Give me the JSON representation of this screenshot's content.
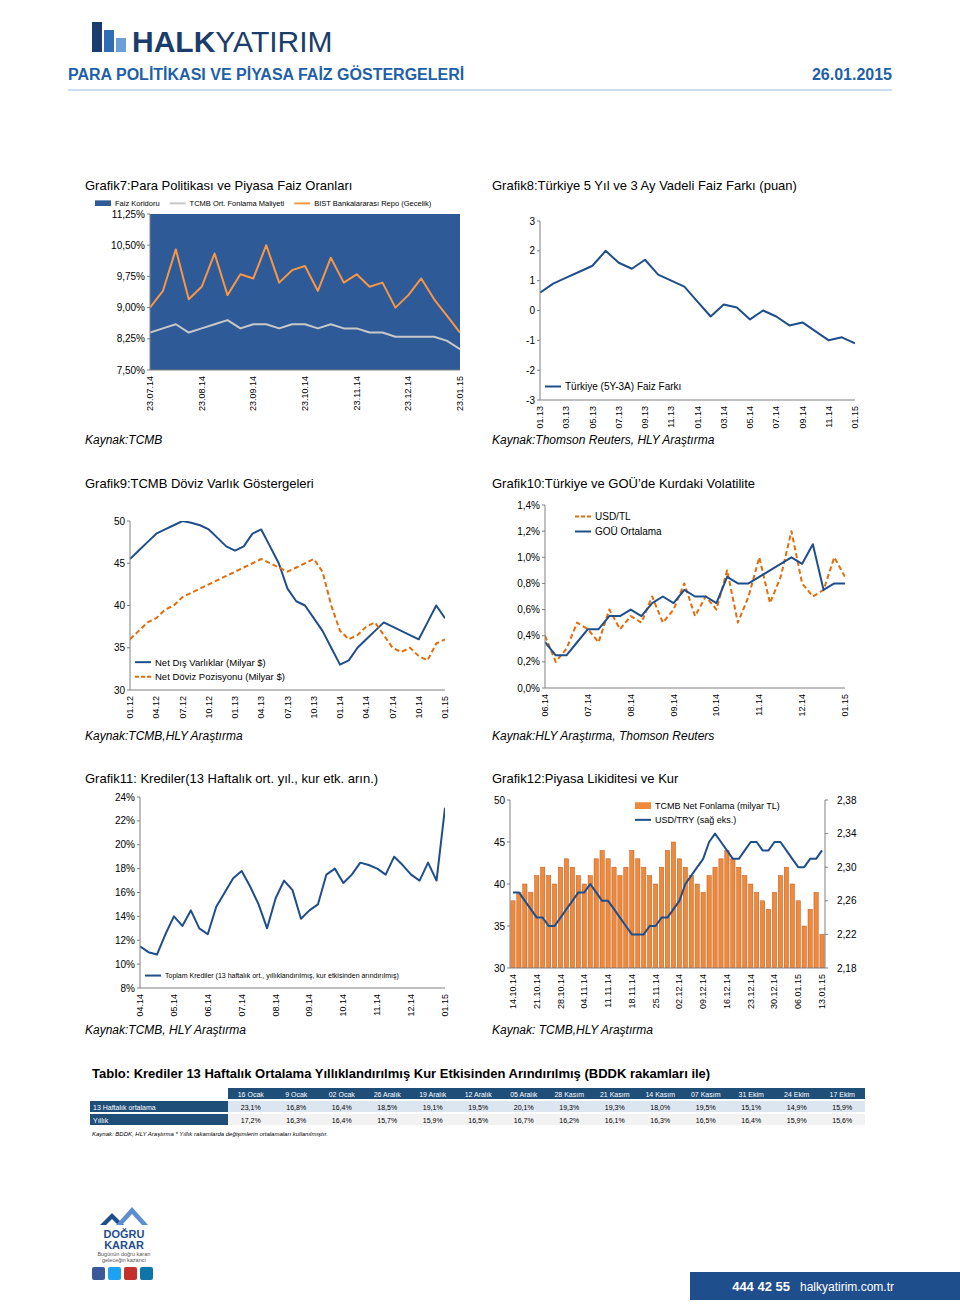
{
  "header": {
    "logo_bold": "HALK",
    "logo_light": "YATIRIM",
    "title": "PARA POLİTİKASI VE PİYASA FAİZ GÖSTERGELERİ",
    "date": "26.01.2015"
  },
  "chart_data": [
    {
      "type": "line",
      "title": "Grafik7:Para Politikası ve Piyasa Faiz Oranları",
      "source": "Kaynak:TCMB",
      "legend": "top",
      "grid": false,
      "categories": [
        "23.07.14",
        null,
        null,
        null,
        "23.08.14",
        null,
        null,
        null,
        "23.09.14",
        null,
        null,
        null,
        "23.10.14",
        null,
        null,
        null,
        "23.11.14",
        null,
        null,
        null,
        "23.12.14",
        null,
        null,
        null,
        "23.01.15"
      ],
      "series": [
        {
          "name": "Faiz Koridoru",
          "type": "area",
          "color": "#2e5a97",
          "values": [
            11.25,
            11.25,
            11.25,
            11.25,
            11.25,
            11.25,
            11.25,
            11.25,
            11.25,
            11.25,
            11.25,
            11.25,
            11.25,
            11.25,
            11.25,
            11.25,
            11.25,
            11.25,
            11.25,
            11.25,
            11.25,
            11.25,
            11.25,
            11.25,
            11.25
          ]
        },
        {
          "name": "TCMB Ort. Fonlama Maliyeti",
          "type": "line",
          "color": "#c8c8c8",
          "values": [
            8.4,
            8.5,
            8.6,
            8.4,
            8.5,
            8.6,
            8.7,
            8.5,
            8.6,
            8.6,
            8.5,
            8.6,
            8.6,
            8.5,
            8.6,
            8.5,
            8.5,
            8.4,
            8.4,
            8.3,
            8.3,
            8.3,
            8.3,
            8.2,
            8.0
          ]
        },
        {
          "name": "BIST Bankalararası Repo (Gecelik)",
          "type": "line",
          "color": "#f79646",
          "values": [
            9.0,
            9.4,
            10.4,
            9.2,
            9.5,
            10.3,
            9.3,
            9.8,
            9.7,
            10.5,
            9.6,
            9.9,
            10.0,
            9.4,
            10.2,
            9.6,
            9.8,
            9.5,
            9.6,
            9.0,
            9.3,
            9.7,
            9.2,
            8.8,
            8.4
          ]
        }
      ],
      "ylim": [
        7.5,
        11.25
      ],
      "yticks": [
        {
          "value": 7.5,
          "label": "7,50%"
        },
        {
          "value": 8.25,
          "label": "8,25%"
        },
        {
          "value": 9,
          "label": "9,00%"
        },
        {
          "value": 9.75,
          "label": "9,75%"
        },
        {
          "value": 10.5,
          "label": "10,50%"
        },
        {
          "value": 11.25,
          "label": "11,25%"
        }
      ]
    },
    {
      "type": "line",
      "title": "Grafik8:Türkiye 5 Yıl ve 3 Ay Vadeli Faiz Farkı (puan)",
      "source": "Kaynak:Thomson Reuters, HLY Araştırma",
      "legend": "bottom-left",
      "grid": false,
      "categories": [
        "01.13",
        null,
        "03.13",
        null,
        "05.13",
        null,
        "07.13",
        null,
        "09.13",
        null,
        "11.13",
        null,
        "01.14",
        null,
        "03.14",
        null,
        "05.14",
        null,
        "07.14",
        null,
        "09.14",
        null,
        "11.14",
        null,
        "01.15"
      ],
      "series": [
        {
          "name": "Türkiye (5Y-3A) Faiz Farkı",
          "color": "#1f4e8c",
          "values": [
            0.6,
            0.9,
            1.1,
            1.3,
            1.5,
            2.0,
            1.6,
            1.4,
            1.7,
            1.2,
            1.0,
            0.8,
            0.3,
            -0.2,
            0.2,
            0.1,
            -0.3,
            0.0,
            -0.2,
            -0.5,
            -0.4,
            -0.7,
            -1.0,
            -0.9,
            -1.1
          ]
        }
      ],
      "ylim": [
        -3,
        3
      ],
      "yticks": [
        -3,
        -2,
        -1,
        0,
        1,
        2,
        3
      ]
    },
    {
      "type": "line",
      "title": "Grafik9:TCMB Döviz Varlık Göstergeleri",
      "source": "Kaynak:TCMB,HLY Araştırma",
      "legend": "bottom-left",
      "grid": false,
      "categories": [
        "01.12",
        null,
        null,
        "04.12",
        null,
        null,
        "07.12",
        null,
        null,
        "10.12",
        null,
        null,
        "01.13",
        null,
        null,
        "04.13",
        null,
        null,
        "07.13",
        null,
        null,
        "10.13",
        null,
        null,
        "01.14",
        null,
        null,
        "04.14",
        null,
        null,
        "07.14",
        null,
        null,
        "10.14",
        null,
        null,
        "01.15"
      ],
      "series": [
        {
          "name": "Net Dış Varlıklar (Milyar $)",
          "color": "#1f4e8c",
          "line_style": "solid",
          "values": [
            45.5,
            46.5,
            47.5,
            48.5,
            49,
            49.5,
            50,
            49.8,
            49.5,
            49,
            48,
            47,
            46.5,
            47,
            48.5,
            49,
            47,
            45,
            42,
            40.5,
            40,
            38.5,
            37,
            35,
            33,
            33.5,
            35,
            36,
            37,
            38,
            37.5,
            37,
            36.5,
            36,
            38,
            40,
            38.5
          ]
        },
        {
          "name": "Net Döviz Pozisyonu (Milyar $)",
          "color": "#e46c0a",
          "line_style": "dashed",
          "values": [
            36,
            37,
            38,
            38.5,
            39.5,
            40,
            41,
            41.5,
            42,
            42.5,
            43,
            43.5,
            44,
            44.5,
            45,
            45.5,
            45,
            44.5,
            44,
            44.5,
            45,
            45.5,
            44,
            40,
            37,
            36,
            36.5,
            37.5,
            38,
            36.5,
            35,
            34.5,
            35,
            34,
            33.5,
            35.5,
            36
          ]
        }
      ],
      "ylim": [
        30,
        50
      ],
      "yticks": [
        30,
        35,
        40,
        45,
        50
      ]
    },
    {
      "type": "line",
      "title": "Grafik10:Türkiye ve GOÜ’de Kurdaki Volatilite",
      "source": "Kaynak:HLY Araştırma, Thomson Reuters",
      "legend": "top-left",
      "grid": false,
      "categories": [
        "06.14",
        null,
        null,
        null,
        "07.14",
        null,
        null,
        null,
        "08.14",
        null,
        null,
        null,
        "09.14",
        null,
        null,
        null,
        "10.14",
        null,
        null,
        null,
        "11.14",
        null,
        null,
        null,
        "12.14",
        null,
        null,
        null,
        "01.15"
      ],
      "series": [
        {
          "name": "USD/TL",
          "color": "#e46c0a",
          "line_style": "dashed",
          "values": [
            0.4,
            0.2,
            0.3,
            0.5,
            0.45,
            0.35,
            0.6,
            0.45,
            0.55,
            0.5,
            0.7,
            0.5,
            0.6,
            0.8,
            0.55,
            0.7,
            0.6,
            0.9,
            0.5,
            0.7,
            1.0,
            0.65,
            0.85,
            1.2,
            0.8,
            0.7,
            0.75,
            1.0,
            0.85
          ]
        },
        {
          "name": "GOÜ Ortalama",
          "color": "#1f4e8c",
          "line_style": "solid",
          "values": [
            0.35,
            0.25,
            0.25,
            0.35,
            0.45,
            0.45,
            0.55,
            0.55,
            0.6,
            0.55,
            0.65,
            0.7,
            0.65,
            0.75,
            0.7,
            0.7,
            0.65,
            0.85,
            0.8,
            0.8,
            0.85,
            0.9,
            0.95,
            1.0,
            0.95,
            1.1,
            0.75,
            0.8,
            0.8
          ]
        }
      ],
      "ylim": [
        0,
        1.4
      ],
      "yticks": [
        {
          "value": 0,
          "label": "0,0%"
        },
        {
          "value": 0.2,
          "label": "0,2%"
        },
        {
          "value": 0.4,
          "label": "0,4%"
        },
        {
          "value": 0.6,
          "label": "0,6%"
        },
        {
          "value": 0.8,
          "label": "0,8%"
        },
        {
          "value": 1.0,
          "label": "1,0%"
        },
        {
          "value": 1.2,
          "label": "1,2%"
        },
        {
          "value": 1.4,
          "label": "1,4%"
        }
      ]
    },
    {
      "type": "line",
      "title": "Grafik11: Krediler(13 Haftalık ort. yıl., kur etk. arın.)",
      "source": "Kaynak:TCMB, HLY Araştırma",
      "legend": "bottom-left",
      "grid": false,
      "categories": [
        "04.14",
        null,
        null,
        null,
        "05.14",
        null,
        null,
        null,
        "06.14",
        null,
        null,
        null,
        "07.14",
        null,
        null,
        null,
        "08.14",
        null,
        null,
        null,
        "09.14",
        null,
        null,
        null,
        "10.14",
        null,
        null,
        null,
        "11.14",
        null,
        null,
        null,
        "12.14",
        null,
        null,
        null,
        "01.15"
      ],
      "series": [
        {
          "name": "Toplam Krediler (13 haftalık ort., yıllıklandırılmış, kur etkisinden arındırılmış)",
          "color": "#1f4e8c",
          "values": [
            11.5,
            11.0,
            10.8,
            12.5,
            14.0,
            13.2,
            14.5,
            13.0,
            12.5,
            14.8,
            16.0,
            17.2,
            17.8,
            16.5,
            15.0,
            13.0,
            15.5,
            17.0,
            16.2,
            13.8,
            14.5,
            15.0,
            17.5,
            18.0,
            16.8,
            17.5,
            18.5,
            18.3,
            18.0,
            17.5,
            19.0,
            18.3,
            17.5,
            17.0,
            18.5,
            17.0,
            23.1
          ]
        }
      ],
      "ylim": [
        8,
        24
      ],
      "yticks": [
        {
          "value": 8,
          "label": "8%"
        },
        {
          "value": 10,
          "label": "10%"
        },
        {
          "value": 12,
          "label": "12%"
        },
        {
          "value": 14,
          "label": "14%"
        },
        {
          "value": 16,
          "label": "16%"
        },
        {
          "value": 18,
          "label": "18%"
        },
        {
          "value": 20,
          "label": "20%"
        },
        {
          "value": 22,
          "label": "22%"
        },
        {
          "value": 24,
          "label": "24%"
        }
      ]
    },
    {
      "type": "bar",
      "title": "Grafik12:Piyasa Likiditesi ve Kur",
      "source": "Kaynak: TCMB,HLY Araştırma",
      "legend": "top-right",
      "grid": false,
      "categories": [
        "14.10.14",
        null,
        null,
        null,
        "21.10.14",
        null,
        null,
        null,
        "28.10.14",
        null,
        null,
        null,
        "04.11.14",
        null,
        null,
        null,
        "11.11.14",
        null,
        null,
        null,
        "18.11.14",
        null,
        null,
        null,
        "25.11.14",
        null,
        null,
        null,
        "02.12.14",
        null,
        null,
        null,
        "09.12.14",
        null,
        null,
        null,
        "16.12.14",
        null,
        null,
        null,
        "23.12.14",
        null,
        null,
        null,
        "30.12.14",
        null,
        null,
        null,
        "06.01.15",
        null,
        null,
        null,
        "13.01.15"
      ],
      "series": [
        {
          "name": "TCMB Net Fonlama (milyar TL)",
          "type": "bar",
          "color": "#ee8a3c",
          "values": [
            38,
            39,
            40,
            39,
            41,
            42,
            41,
            40,
            42,
            43,
            42,
            41,
            40,
            41,
            43,
            44,
            43,
            42,
            41,
            42,
            44,
            43,
            42,
            41,
            40,
            42,
            44,
            45,
            43,
            42,
            41,
            40,
            39,
            41,
            42,
            43,
            44,
            43,
            42,
            41,
            40,
            39,
            38,
            37,
            39,
            41,
            42,
            40,
            38,
            35,
            37,
            39,
            34
          ]
        },
        {
          "name": "USD/TRY (sağ eks.)",
          "type": "line",
          "axis": "y2",
          "color": "#1f4e8c",
          "values": [
            2.27,
            2.27,
            2.26,
            2.25,
            2.24,
            2.24,
            2.23,
            2.23,
            2.24,
            2.25,
            2.26,
            2.27,
            2.27,
            2.28,
            2.27,
            2.26,
            2.26,
            2.25,
            2.24,
            2.23,
            2.22,
            2.22,
            2.22,
            2.23,
            2.23,
            2.24,
            2.24,
            2.25,
            2.26,
            2.28,
            2.29,
            2.3,
            2.31,
            2.33,
            2.34,
            2.33,
            2.32,
            2.31,
            2.31,
            2.32,
            2.33,
            2.33,
            2.32,
            2.32,
            2.33,
            2.33,
            2.32,
            2.31,
            2.3,
            2.3,
            2.31,
            2.31,
            2.32
          ]
        }
      ],
      "ylim": [
        30,
        50
      ],
      "yticks": [
        30,
        35,
        40,
        45,
        50
      ],
      "y2lim": [
        2.18,
        2.38
      ],
      "y2ticks": [
        {
          "value": 2.18,
          "label": "2,18"
        },
        {
          "value": 2.22,
          "label": "2,22"
        },
        {
          "value": 2.26,
          "label": "2,26"
        },
        {
          "value": 2.3,
          "label": "2,30"
        },
        {
          "value": 2.34,
          "label": "2,34"
        },
        {
          "value": 2.38,
          "label": "2,38"
        }
      ]
    }
  ],
  "table": {
    "title": "Tablo: Krediler 13 Haftalık Ortalama Yıllıklandırılmış Kur Etkisinden Arındırılmış (BDDK rakamları ile)",
    "columns": [
      "16 Ocak",
      "9 Ocak",
      "02 Ocak",
      "26 Aralık",
      "19 Aralık",
      "12 Aralık",
      "05 Aralık",
      "28 Kasım",
      "21 Kasım",
      "14 Kasım",
      "07 Kasım",
      "31 Ekim",
      "24 Ekim",
      "17 Ekim"
    ],
    "rows": [
      {
        "label": "13 Haftalık ortalama",
        "values": [
          "23,1%",
          "16,8%",
          "16,4%",
          "18,5%",
          "19,1%",
          "19,5%",
          "20,1%",
          "19,3%",
          "19,3%",
          "18,0%",
          "19,5%",
          "15,1%",
          "14,9%",
          "15,9%"
        ]
      },
      {
        "label": "Yıllık",
        "values": [
          "17,2%",
          "16,3%",
          "16,4%",
          "15,7%",
          "15,9%",
          "16,5%",
          "16,7%",
          "16,2%",
          "16,1%",
          "16,3%",
          "16,5%",
          "16,4%",
          "15,9%",
          "15,6%"
        ]
      }
    ],
    "note": "Kaynak: BDDK, HLY Araştırma * Yıllık rakamlarda değişimlerin ortalamaları kullanılmıştır."
  },
  "footer": {
    "logo_top": "DOĞRU",
    "logo_bottom": "KARAR",
    "slogan_1": "Bugünün doğru kararı",
    "slogan_2": "geleceğin kazancı",
    "phone": "444 42 55",
    "web": "halkyatirim.com.tr"
  }
}
